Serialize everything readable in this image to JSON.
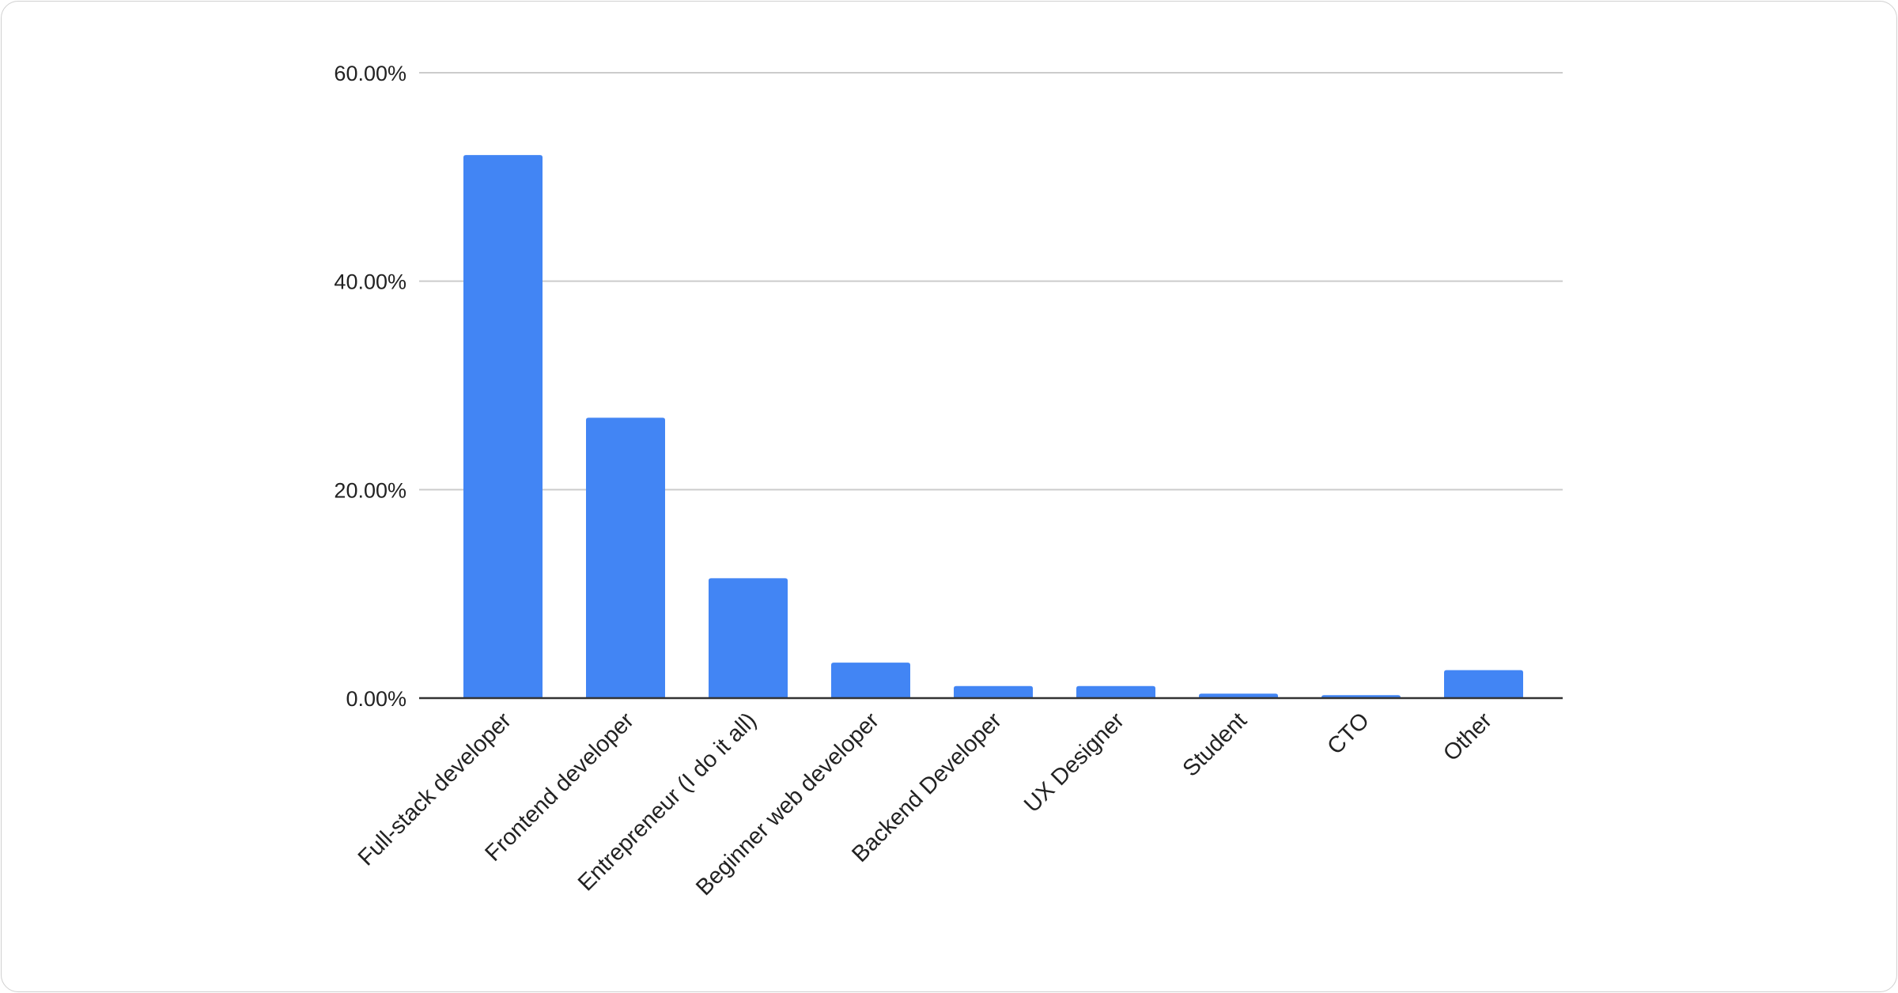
{
  "chart_data": {
    "type": "bar",
    "title": "",
    "xlabel": "",
    "ylabel": "",
    "categories": [
      "Full-stack developer",
      "Frontend developer",
      "Entrepreneur (I do it all)",
      "Beginner web developer",
      "Backend Developer",
      "UX Designer",
      "Student",
      "CTO",
      "Other"
    ],
    "values": [
      52.1,
      26.9,
      11.5,
      3.4,
      1.16,
      1.16,
      0.43,
      0.28,
      2.68
    ],
    "value_unit": "%",
    "ylim": [
      0,
      60
    ],
    "yticks": [
      0,
      20,
      40,
      60
    ],
    "ytick_labels": [
      "0.00%",
      "20.00%",
      "40.00%",
      "60.00%"
    ],
    "grid": true,
    "legend": "none",
    "bar_color": "#4285f4"
  }
}
